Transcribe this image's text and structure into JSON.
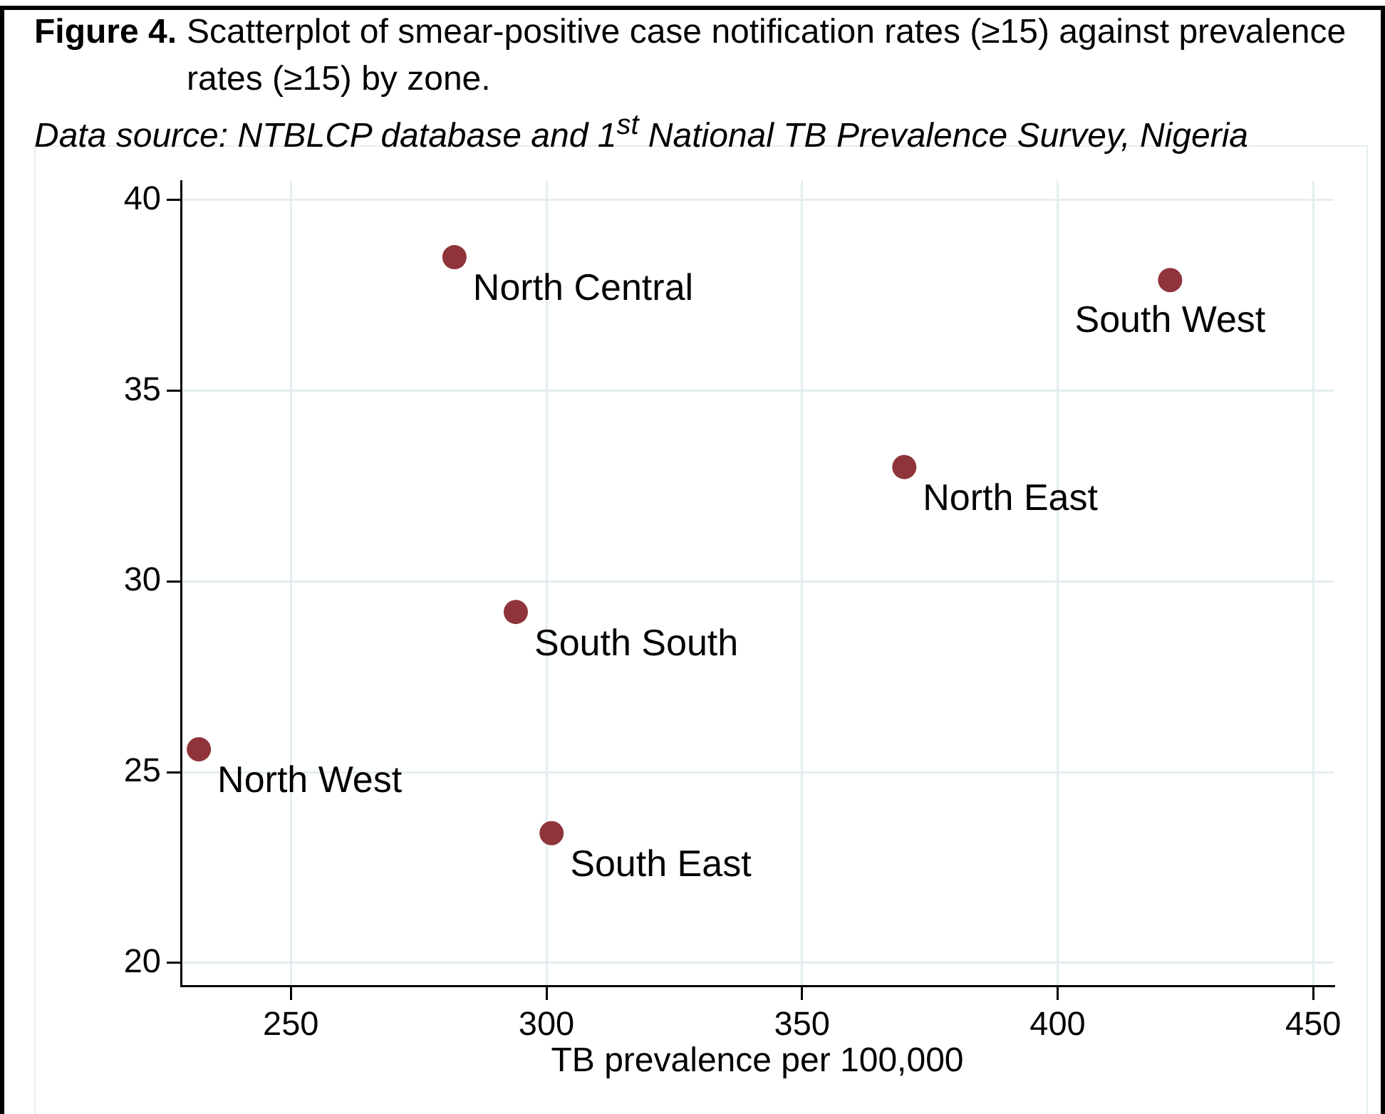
{
  "chart_data": {
    "type": "scatter",
    "title": "Figure 4.",
    "subtitle": "Scatterplot of smear-positive case notification rates (≥15) against prevalence rates (≥15) by zone.",
    "annotations": [
      "Data source: NTBLCP database and 1$^{st}$ National TB Prevalence Survey, Nigeria",
      {
        "text": "North Central",
        "x": 282,
        "y": 38.5
      },
      {
        "text": "South West",
        "x": 422,
        "y": 37.9
      },
      {
        "text": "North East",
        "x": 370,
        "y": 33.0
      },
      {
        "text": "South South",
        "x": 294,
        "y": 29.2
      },
      {
        "text": "North West",
        "x": 232,
        "y": 25.6
      },
      {
        "text": "South East",
        "x": 301,
        "y": 23.4
      }
    ],
    "xlabel": "TB prevalence per 100,000",
    "x": [
      282,
      422,
      370,
      294,
      232,
      301
    ],
    "series": [
      {
        "color": "#8f343a",
        "values": [
          38.5,
          37.9,
          33.0,
          29.2,
          25.6,
          23.4
        ]
      }
    ],
    "xlim": [
      228.5,
      454
    ],
    "xticks": [
      250,
      300,
      350,
      400,
      450
    ],
    "ylim": [
      19.4,
      40.5
    ],
    "yticks": [
      20,
      25,
      30,
      35,
      40
    ],
    "grid": true,
    "marker": "circle"
  }
}
